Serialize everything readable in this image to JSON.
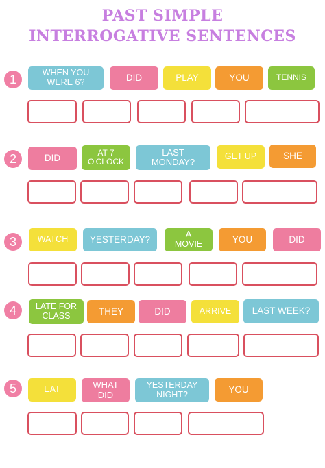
{
  "title": {
    "line1": "PAST SIMPLE",
    "line2": "INTERROGATIVE SENTENCES"
  },
  "colors": {
    "title": "#c77fe0",
    "number": "#f07fa4",
    "blank_border": "#d9505f",
    "blue": "#7dc7d6",
    "pink": "#ee7d9f",
    "yellow": "#f4e03a",
    "orange": "#f49b33",
    "green": "#8cc63f"
  },
  "rows": [
    {
      "number": "1",
      "tiles": [
        "WHEN YOU\nWERE 6?",
        "DID",
        "PLAY",
        "YOU",
        "TENNIS"
      ]
    },
    {
      "number": "2",
      "tiles": [
        "DID",
        "AT 7\nO'CLOCK",
        "LAST\nMONDAY?",
        "GET UP",
        "SHE"
      ]
    },
    {
      "number": "3",
      "tiles": [
        "WATCH",
        "YESTERDAY?",
        "A\nMOVIE",
        "YOU",
        "DID"
      ]
    },
    {
      "number": "4",
      "tiles": [
        "LATE FOR\nCLASS",
        "THEY",
        "DID",
        "ARRIVE",
        "LAST WEEK?"
      ]
    },
    {
      "number": "5",
      "tiles": [
        "EAT",
        "WHAT\nDID",
        "YESTERDAY\nNIGHT?",
        "YOU"
      ]
    }
  ]
}
